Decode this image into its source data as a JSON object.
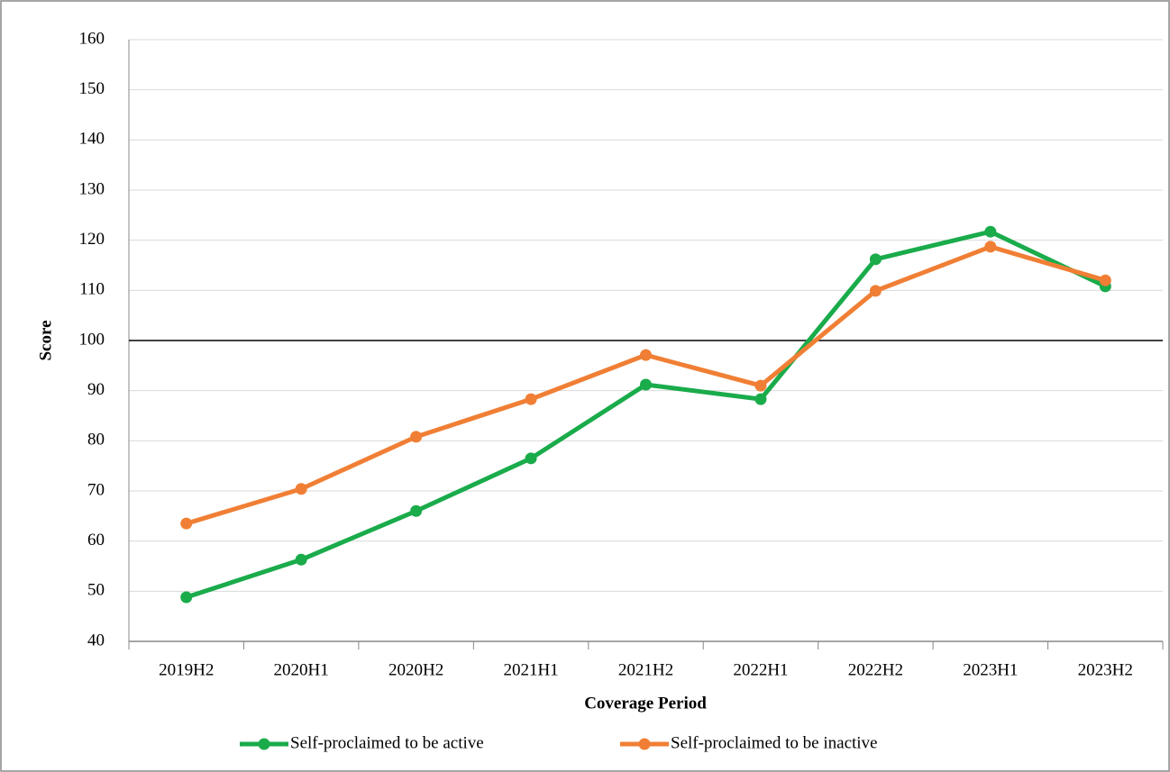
{
  "chart_data": {
    "type": "line",
    "x_label": "Coverage Period",
    "y_label": "Score",
    "categories": [
      "2019H2",
      "2020H1",
      "2020H2",
      "2021H1",
      "2021H2",
      "2022H1",
      "2022H2",
      "2023H1",
      "2023H2"
    ],
    "series": [
      {
        "name": "Self-proclaimed to be active",
        "color": "#1aab4b",
        "values": [
          48.8,
          56.3,
          66.0,
          76.5,
          91.2,
          88.3,
          116.2,
          121.7,
          110.8
        ]
      },
      {
        "name": "Self-proclaimed to be inactive",
        "color": "#f07f35",
        "values": [
          63.5,
          70.4,
          80.8,
          88.3,
          97.1,
          91.0,
          109.9,
          118.7,
          112.0
        ]
      }
    ],
    "ylim": [
      40,
      160
    ],
    "yticks": [
      40,
      50,
      60,
      70,
      80,
      90,
      100,
      110,
      120,
      130,
      140,
      150,
      160
    ],
    "reference_line": 100,
    "grid": true,
    "legend": "bottom"
  }
}
